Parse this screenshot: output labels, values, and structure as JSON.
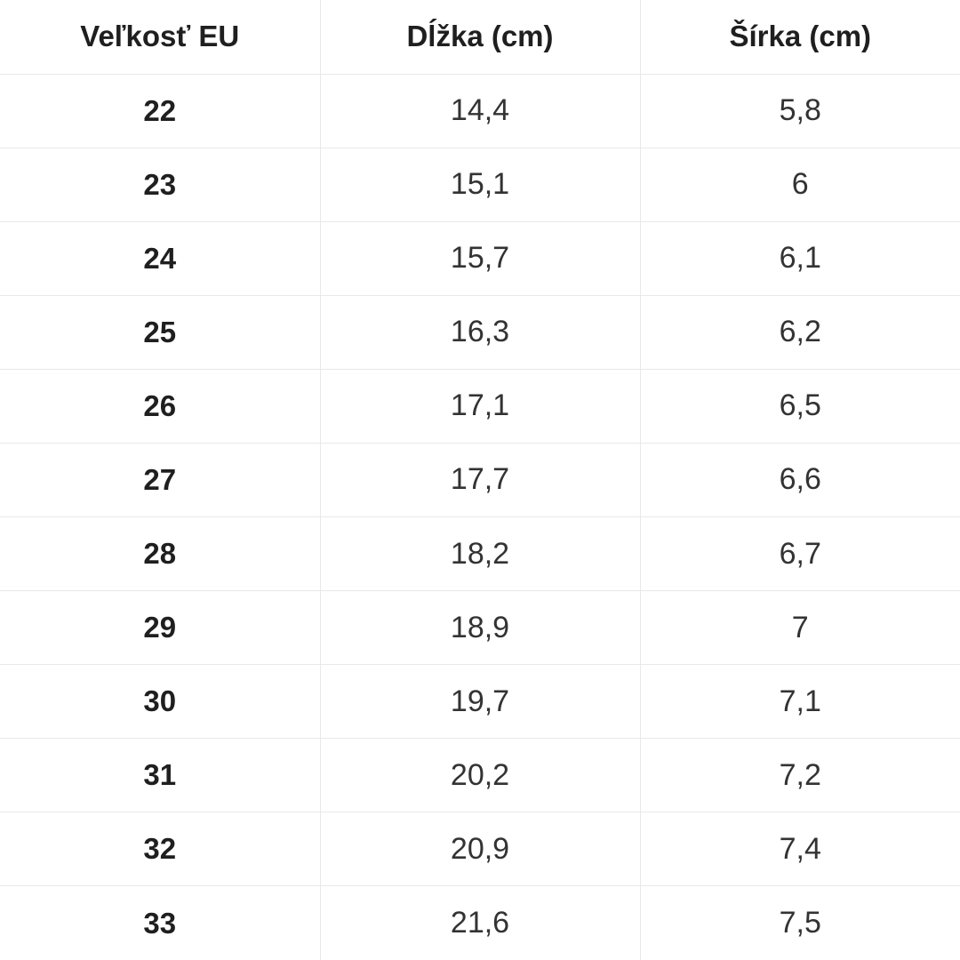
{
  "chart_data": {
    "type": "table",
    "title": "",
    "columns": [
      "Veľkosť EU",
      "Dĺžka (cm)",
      "Šírka (cm)"
    ],
    "rows": [
      [
        "22",
        "14,4",
        "5,8"
      ],
      [
        "23",
        "15,1",
        "6"
      ],
      [
        "24",
        "15,7",
        "6,1"
      ],
      [
        "25",
        "16,3",
        "6,2"
      ],
      [
        "26",
        "17,1",
        "6,5"
      ],
      [
        "27",
        "17,7",
        "6,6"
      ],
      [
        "28",
        "18,2",
        "6,7"
      ],
      [
        "29",
        "18,9",
        "7"
      ],
      [
        "30",
        "19,7",
        "7,1"
      ],
      [
        "31",
        "20,2",
        "7,2"
      ],
      [
        "32",
        "20,9",
        "7,4"
      ],
      [
        "33",
        "21,6",
        "7,5"
      ]
    ]
  },
  "colors": {
    "border": "#e8e8e8",
    "header_text": "#1f1f1f",
    "size_text": "#1f1f1f",
    "cell_text": "#333333",
    "background": "#ffffff"
  }
}
